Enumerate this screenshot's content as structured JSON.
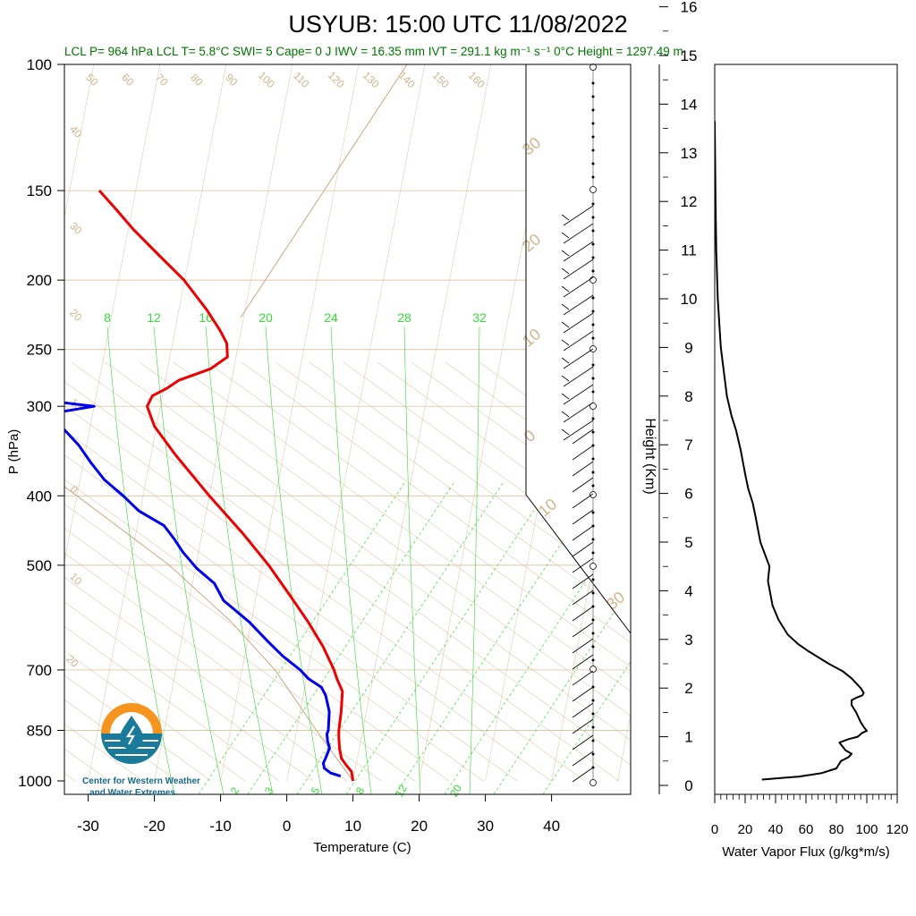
{
  "header": {
    "title": "USYUB: 15:00 UTC 11/08/2022",
    "stats": "LCL P= 964 hPa  LCL T= 5.8°C  SWI= 5  Cape= 0 J  IWV = 16.35 mm  IVT = 291.1 kg m⁻¹ s⁻¹  0°C Height = 1297.49 m"
  },
  "logo": {
    "line1": "Center for Western Weather",
    "line2": "and Water Extremes"
  },
  "skewt": {
    "xlabel": "Temperature (C)",
    "ylabel": "P (hPa)",
    "pressure_ticks": [
      "100",
      "150",
      "200",
      "250",
      "300",
      "400",
      "500",
      "700",
      "850",
      "1000"
    ],
    "temp_ticks": [
      "-30",
      "-20",
      "-10",
      "0",
      "10",
      "20",
      "30",
      "40"
    ],
    "mixing_top_labels": [
      "8",
      "12",
      "16",
      "20",
      "24",
      "28",
      "32"
    ],
    "mixing_bottom_labels": [
      "2",
      "3",
      "5",
      "8",
      "12",
      "20"
    ],
    "theta_top_labels": [
      "50",
      "60",
      "70",
      "80",
      "90",
      "100",
      "110",
      "120",
      "130",
      "140",
      "150",
      "160"
    ],
    "theta_left_labels": [
      "40",
      "30",
      "20",
      "10",
      "0",
      "10",
      "20"
    ],
    "wind_side_labels": [
      "30",
      "20",
      "10",
      "0",
      "10",
      "30"
    ]
  },
  "flux": {
    "xlabel": "Water Vapor Flux (g/kg*m/s)",
    "ylabel": "Height (Km)",
    "x_ticks": [
      "0",
      "20",
      "40",
      "60",
      "80",
      "100",
      "120"
    ],
    "y_ticks": [
      "0",
      "1",
      "2",
      "3",
      "4",
      "5",
      "6",
      "7",
      "8",
      "9",
      "10",
      "11",
      "12",
      "13",
      "14",
      "15",
      "16"
    ]
  },
  "colors": {
    "temperature": "#ee0000",
    "dewpoint": "#0000ee",
    "mixing_ratio": "#33dd33",
    "adiabat": "#d2b48c",
    "logo_orange": "#f7941d",
    "logo_teal": "#1a7a9a"
  },
  "chart_data": [
    {
      "type": "line",
      "name": "skew-t",
      "ylog": true,
      "ylim": [
        1000,
        100
      ],
      "xlim": [
        -33,
        47
      ],
      "series": [
        {
          "name": "Temperature",
          "points": [
            [
              1000,
              10.0
            ],
            [
              970,
              9.5
            ],
            [
              950,
              8.5
            ],
            [
              930,
              7.6
            ],
            [
              900,
              7.0
            ],
            [
              870,
              6.6
            ],
            [
              850,
              6.4
            ],
            [
              800,
              6.2
            ],
            [
              750,
              5.8
            ],
            [
              720,
              4.6
            ],
            [
              700,
              3.9
            ],
            [
              650,
              1.6
            ],
            [
              600,
              -1.4
            ],
            [
              550,
              -5.0
            ],
            [
              500,
              -9.0
            ],
            [
              450,
              -14.0
            ],
            [
              400,
              -20.0
            ],
            [
              350,
              -26.4
            ],
            [
              320,
              -30.3
            ],
            [
              300,
              -32.0
            ],
            [
              290,
              -31.5
            ],
            [
              283,
              -29.5
            ],
            [
              276,
              -28.0
            ],
            [
              266,
              -23.5
            ],
            [
              256,
              -21.3
            ],
            [
              245,
              -21.8
            ],
            [
              235,
              -23.2
            ],
            [
              220,
              -25.8
            ],
            [
              200,
              -30.1
            ],
            [
              185,
              -34.5
            ],
            [
              170,
              -39.2
            ],
            [
              160,
              -42.2
            ],
            [
              150,
              -45.5
            ]
          ]
        },
        {
          "name": "Dewpoint",
          "points": [
            [
              985,
              8.0
            ],
            [
              975,
              6.4
            ],
            [
              960,
              5.3
            ],
            [
              945,
              5.0
            ],
            [
              930,
              5.2
            ],
            [
              900,
              5.5
            ],
            [
              880,
              5.0
            ],
            [
              860,
              4.7
            ],
            [
              850,
              4.8
            ],
            [
              800,
              4.4
            ],
            [
              760,
              3.4
            ],
            [
              740,
              2.5
            ],
            [
              720,
              0.3
            ],
            [
              700,
              -1.2
            ],
            [
              670,
              -4.2
            ],
            [
              640,
              -6.8
            ],
            [
              600,
              -10.3
            ],
            [
              560,
              -14.8
            ],
            [
              530,
              -16.7
            ],
            [
              505,
              -19.8
            ],
            [
              480,
              -22.3
            ],
            [
              460,
              -24.0
            ],
            [
              440,
              -26.0
            ],
            [
              420,
              -30.2
            ],
            [
              400,
              -33.0
            ],
            [
              380,
              -36.3
            ],
            [
              360,
              -38.8
            ],
            [
              340,
              -41.2
            ],
            [
              320,
              -44.4
            ],
            [
              310,
              -47.5
            ],
            [
              305,
              -44.5
            ],
            [
              300,
              -40.0
            ],
            [
              296,
              -45.5
            ],
            [
              293,
              -55.0
            ],
            [
              288,
              -60.3
            ],
            [
              285,
              -56.0
            ],
            [
              280,
              -58.3
            ],
            [
              270,
              -52.2
            ],
            [
              260,
              -48.8
            ],
            [
              240,
              -50.2
            ],
            [
              225,
              -52.0
            ],
            [
              205,
              -55.0
            ],
            [
              190,
              -56.4
            ],
            [
              170,
              -60.8
            ],
            [
              160,
              -63.2
            ],
            [
              150,
              -65.0
            ]
          ]
        }
      ]
    },
    {
      "type": "line",
      "name": "water-vapor-flux",
      "xlabel": "Water Vapor Flux (g/kg*m/s)",
      "ylabel": "Height (Km)",
      "xlim": [
        0,
        120
      ],
      "ylim": [
        0,
        16.5
      ],
      "x": [
        31,
        55,
        70,
        80,
        83,
        88,
        90,
        86,
        84,
        82,
        88,
        94,
        97,
        100,
        98,
        96,
        93,
        90,
        90,
        93,
        97,
        98,
        96,
        90,
        84,
        75,
        62,
        55,
        48,
        42,
        38,
        35,
        36,
        33,
        30,
        27,
        25,
        22,
        20,
        17,
        14,
        11,
        8,
        6,
        4,
        2,
        1,
        0.5,
        0
      ],
      "y": [
        0.12,
        0.18,
        0.25,
        0.35,
        0.5,
        0.58,
        0.65,
        0.72,
        0.8,
        0.88,
        0.95,
        1.0,
        1.08,
        1.12,
        1.2,
        1.3,
        1.5,
        1.65,
        1.75,
        1.8,
        1.85,
        1.9,
        2.0,
        2.2,
        2.35,
        2.5,
        2.75,
        2.9,
        3.1,
        3.4,
        3.7,
        4.2,
        4.5,
        4.75,
        5.0,
        5.5,
        5.8,
        6.1,
        6.4,
        6.9,
        7.3,
        7.6,
        8.0,
        8.5,
        9.0,
        10.0,
        11.0,
        12.0,
        13.65
      ]
    }
  ]
}
